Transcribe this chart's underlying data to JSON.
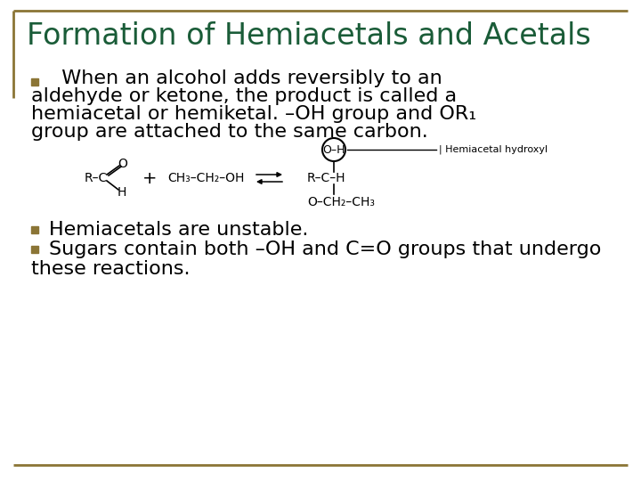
{
  "title": "Formation of Hemiacetals and Acetals",
  "title_color": "#1a5c38",
  "title_fontsize": 24,
  "background_color": "#ffffff",
  "border_color": "#8B7536",
  "bullet_color": "#8B7536",
  "body_text_color": "#000000",
  "body_fontsize": 16,
  "chem_fontsize": 10,
  "label_fontsize": 8,
  "line1": "  When an alcohol adds reversibly to an",
  "line2": "aldehyde or ketone, the product is called a",
  "line3": "hemiacetal or hemiketal. –OH group and OR₁",
  "line4": "group are attached to the same carbon.",
  "bullet2": "Hemiacetals are unstable.",
  "bullet3_a": "Sugars contain both –OH and C=O groups that undergo",
  "bullet3_b": "these reactions."
}
